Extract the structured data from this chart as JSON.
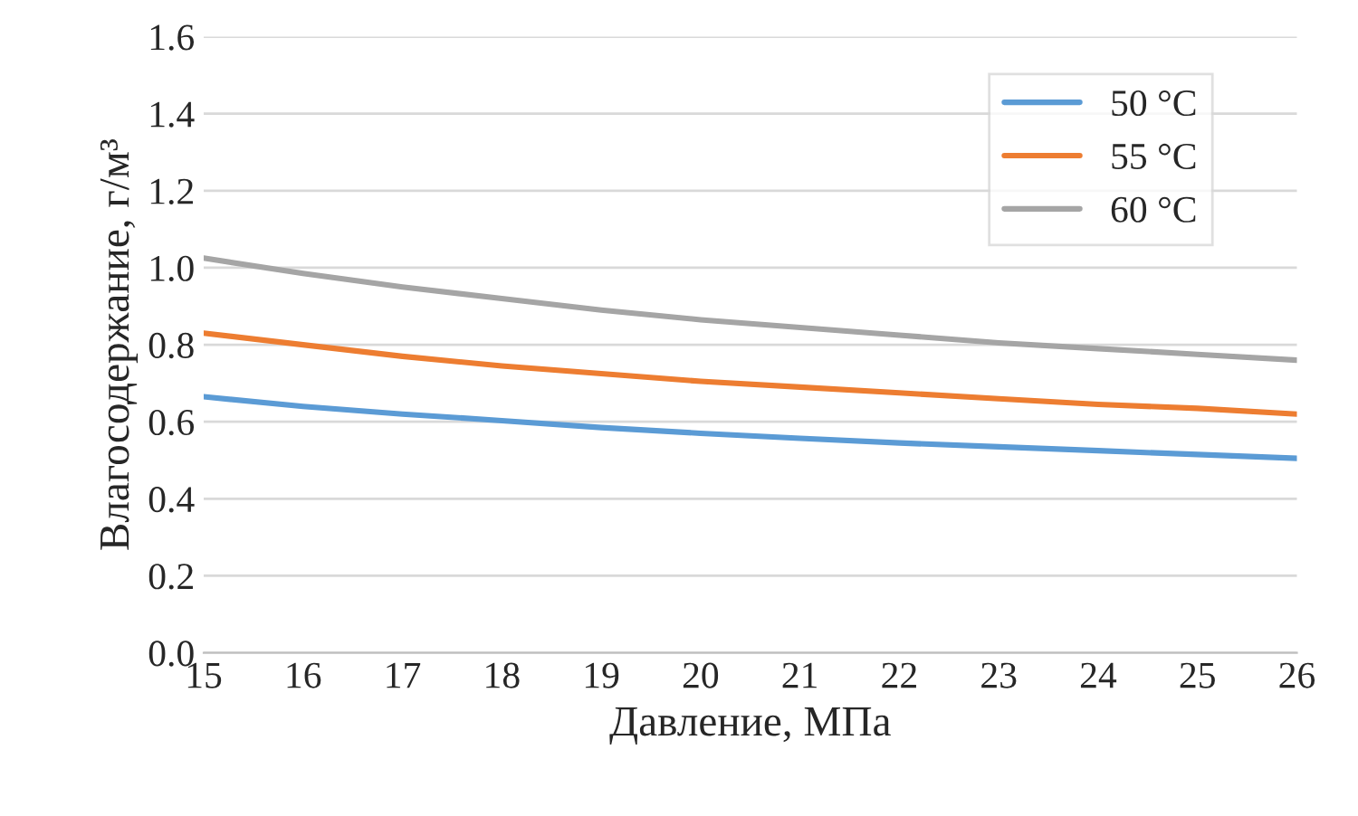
{
  "chart_data": {
    "type": "line",
    "xlabel": "Давление, МПа",
    "ylabel": "Влагосодержание, г/м³",
    "x": [
      15,
      16,
      17,
      18,
      19,
      20,
      21,
      22,
      23,
      24,
      25,
      26
    ],
    "series": [
      {
        "name": "50 °C",
        "color": "#5b9bd5",
        "values": [
          0.665,
          0.64,
          0.62,
          0.603,
          0.585,
          0.57,
          0.557,
          0.545,
          0.535,
          0.525,
          0.515,
          0.505
        ]
      },
      {
        "name": "55 °C",
        "color": "#ed7d31",
        "values": [
          0.83,
          0.8,
          0.77,
          0.745,
          0.725,
          0.705,
          0.69,
          0.675,
          0.66,
          0.645,
          0.635,
          0.62
        ]
      },
      {
        "name": "60 °C",
        "color": "#a5a5a5",
        "values": [
          1.025,
          0.985,
          0.95,
          0.92,
          0.89,
          0.865,
          0.845,
          0.825,
          0.805,
          0.79,
          0.775,
          0.76
        ]
      }
    ],
    "xlim": [
      15,
      26
    ],
    "xticks": [
      15,
      16,
      17,
      18,
      19,
      20,
      21,
      22,
      23,
      24,
      25,
      26
    ],
    "ylim": [
      0,
      1.6
    ],
    "yticks": [
      {
        "value": 0,
        "label": "0.0"
      },
      {
        "value": 0.2,
        "label": "0.2"
      },
      {
        "value": 0.4,
        "label": "0.4"
      },
      {
        "value": 0.6,
        "label": "0.6"
      },
      {
        "value": 0.8,
        "label": "0.8"
      },
      {
        "value": 1.0,
        "label": "1.0"
      },
      {
        "value": 1.2,
        "label": "1.2"
      },
      {
        "value": 1.4,
        "label": "1.4"
      },
      {
        "value": 1.6,
        "label": "1.6"
      }
    ],
    "grid": "y",
    "legend": "top right",
    "line_style": "solid",
    "marker": "none"
  }
}
